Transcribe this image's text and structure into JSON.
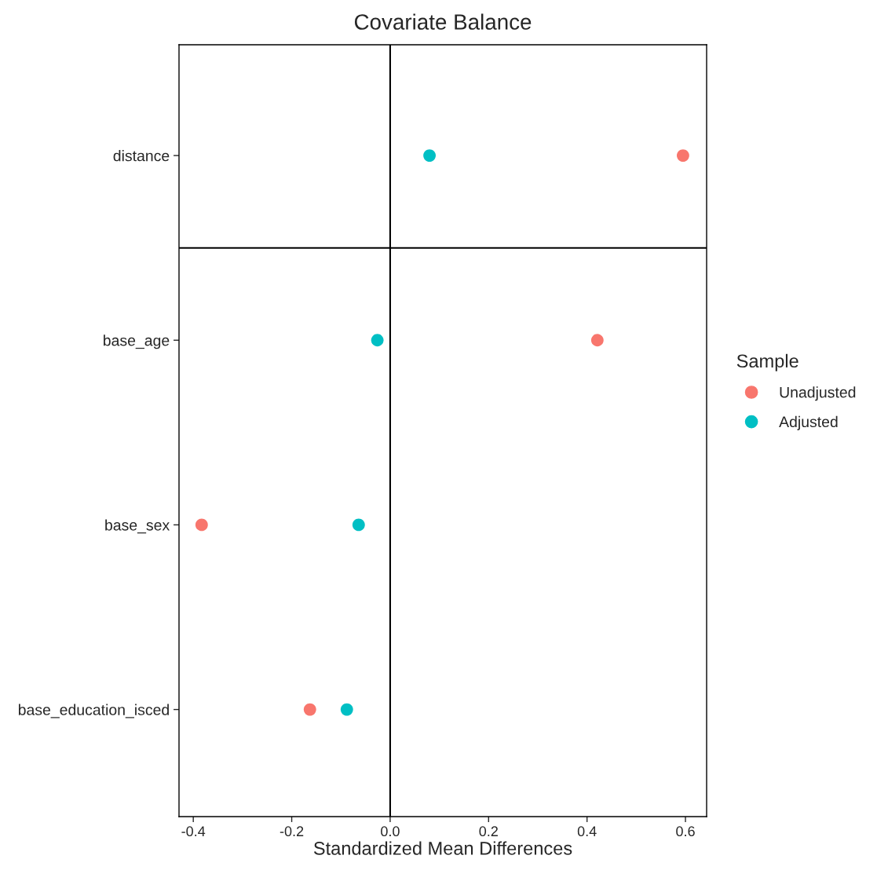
{
  "chart_data": {
    "type": "scatter",
    "title": "Covariate Balance",
    "xlabel": "Standardized Mean Differences",
    "legend_title": "Sample",
    "legend": "right",
    "orientation": "horizontal",
    "categories": [
      "distance",
      "base_age",
      "base_sex",
      "base_education_isced"
    ],
    "series": [
      {
        "name": "Unadjusted",
        "color": "#f8766d",
        "values": [
          0.595,
          0.421,
          -0.383,
          -0.163
        ]
      },
      {
        "name": "Adjusted",
        "color": "#00bfc4",
        "values": [
          0.08,
          -0.026,
          -0.064,
          -0.088
        ]
      }
    ],
    "xlim": [
      -0.429,
      0.643
    ],
    "xticks": [
      {
        "value": -0.4,
        "label": "-0.4"
      },
      {
        "value": -0.2,
        "label": "-0.2"
      },
      {
        "value": 0,
        "label": "0.0"
      },
      {
        "value": 0.2,
        "label": "0.2"
      },
      {
        "value": 0.4,
        "label": "0.4"
      },
      {
        "value": 0.6,
        "label": "0.6"
      }
    ],
    "ref_lines": [
      {
        "axis": "x",
        "value": 0
      }
    ],
    "marker": "circle",
    "grid": false
  }
}
